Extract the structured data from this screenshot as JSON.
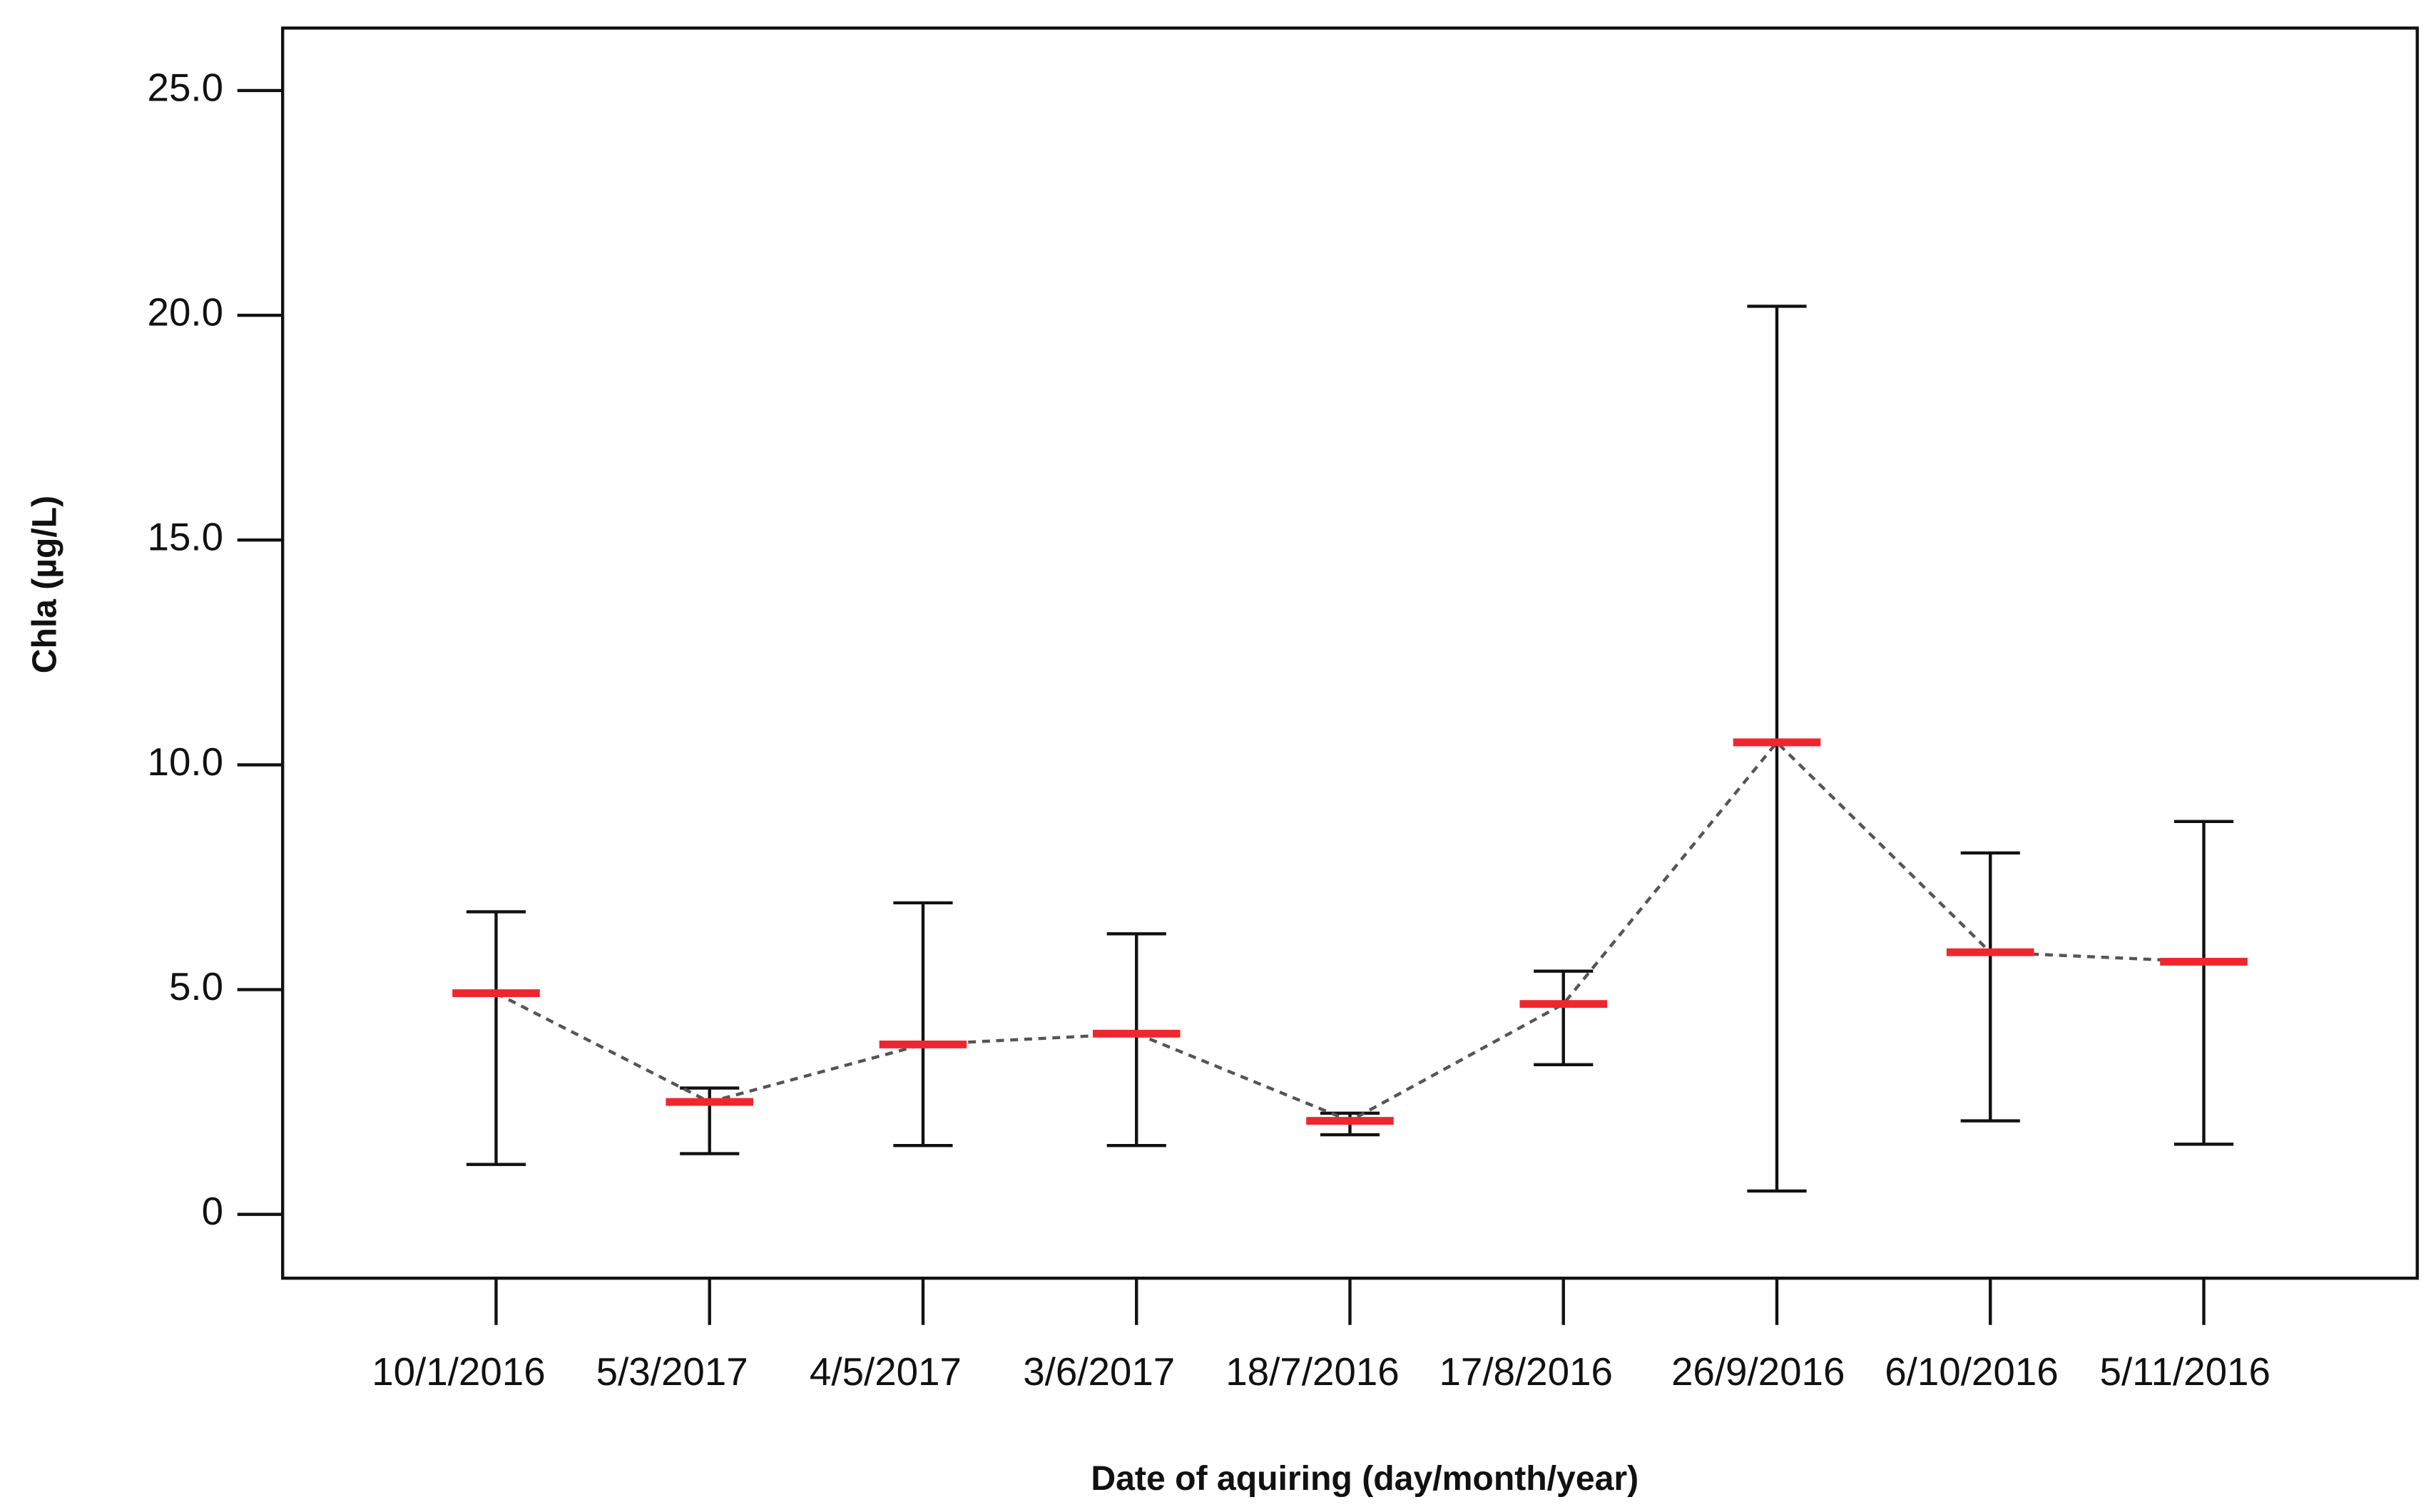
{
  "chart_data": {
    "type": "errorbar",
    "x_label": "Date of aquiring (day/month/year)",
    "y_label": "Chla (µg/L)",
    "categories": [
      "10/1/2016",
      "5/3/2017",
      "4/5/2017",
      "3/6/2017",
      "18/7/2016",
      "17/8/2016",
      "26/9/2016",
      "6/10/2016",
      "5/11/2016"
    ],
    "values": [
      4.92,
      2.5,
      3.78,
      4.02,
      2.08,
      4.68,
      10.5,
      5.83,
      5.62
    ],
    "low": [
      1.11,
      1.35,
      1.53,
      1.53,
      1.77,
      3.33,
      0.52,
      2.08,
      1.56
    ],
    "high": [
      6.73,
      2.81,
      6.93,
      6.24,
      2.25,
      5.41,
      20.2,
      8.04,
      8.74
    ],
    "color": "#f0262e",
    "bar_color": "#111111",
    "line_color": "#555555",
    "ylim": [
      -1.42,
      26.39
    ],
    "yticks": [
      0,
      {
        "value": 5,
        "label": "5.0"
      },
      {
        "value": 10,
        "label": "10.0"
      },
      {
        "value": 15,
        "label": "15.0"
      },
      {
        "value": 20,
        "label": "20.0"
      },
      {
        "value": 25,
        "label": "25.0"
      }
    ]
  }
}
